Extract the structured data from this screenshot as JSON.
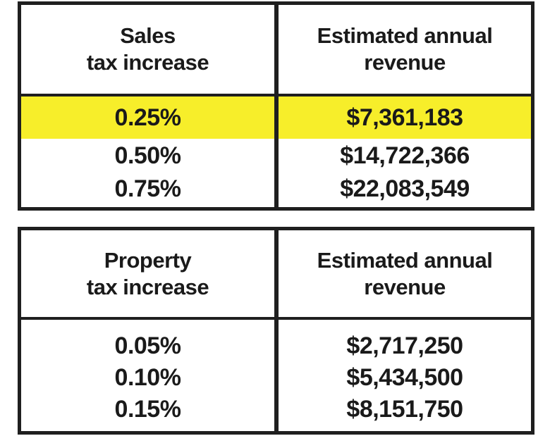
{
  "sales_table": {
    "header_left_line1": "Sales",
    "header_left_line2": "tax increase",
    "header_right_line1": "Estimated annual",
    "header_right_line2": "revenue",
    "rows": [
      {
        "rate": "0.25%",
        "revenue": "$7,361,183",
        "highlighted": true
      },
      {
        "rate": "0.50%",
        "revenue": "$14,722,366",
        "highlighted": false
      },
      {
        "rate": "0.75%",
        "revenue": "$22,083,549",
        "highlighted": false
      }
    ]
  },
  "property_table": {
    "header_left_line1": "Property",
    "header_left_line2": "tax increase",
    "header_right_line1": "Estimated annual",
    "header_right_line2": "revenue",
    "rows": [
      {
        "rate": "0.05%",
        "revenue": "$2,717,250"
      },
      {
        "rate": "0.10%",
        "revenue": "$5,434,500"
      },
      {
        "rate": "0.15%",
        "revenue": "$8,151,750"
      }
    ]
  },
  "colors": {
    "highlight": "#f7ee2a",
    "border": "#1f1f1f",
    "text": "#1a1a1a"
  }
}
